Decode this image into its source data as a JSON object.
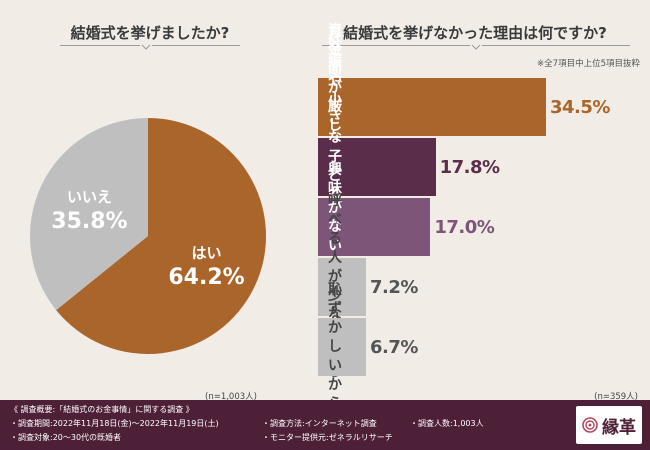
{
  "left": {
    "title": "結婚式を挙げましたか?",
    "n_label": "(n=1,003人)"
  },
  "right": {
    "title": "結婚式を挙げなかった理由は何ですか?",
    "note": "※全7項目中上位5項目抜粋",
    "n_label": "(n=359人)"
  },
  "chart_data": [
    {
      "type": "pie",
      "title": "結婚式を挙げましたか?",
      "categories": [
        "はい",
        "いいえ"
      ],
      "values": [
        64.2,
        35.8
      ],
      "value_labels": [
        "64.2%",
        "35.8%"
      ],
      "colors": [
        "#a9652a",
        "#bfbfbf"
      ],
      "label_colors": [
        "#ffffff",
        "#ffffff"
      ],
      "n": "(n=1,003人)"
    },
    {
      "type": "bar",
      "orientation": "horizontal",
      "title": "結婚式を挙げなかった理由は何ですか?",
      "categories": [
        "資金面が厳しいから",
        "妊娠や\n小さな子どもがいるから",
        "興味がないから",
        "呼べる人が少ないから",
        "恥ずかしいから"
      ],
      "values": [
        34.5,
        17.8,
        17.0,
        7.2,
        6.7
      ],
      "value_labels": [
        "34.5%",
        "17.8%",
        "17.0%",
        "7.2%",
        "6.7%"
      ],
      "colors": [
        "#a9652a",
        "#5a2e4a",
        "#7d5578",
        "#bfbfbf",
        "#bfbfbf"
      ],
      "label_colors": [
        "#ffffff",
        "#ffffff",
        "#ffffff",
        "#444444",
        "#444444"
      ],
      "value_colors": [
        "#a9652a",
        "#5a2e4a",
        "#7d5578",
        "#555555",
        "#555555"
      ],
      "n": "(n=359人)"
    }
  ],
  "footer": {
    "line1": "《 調査概要:「結婚式のお金事情」に関する調査 》",
    "period": "・調査期間:2022年11月18日(金)〜2022年11月19日(土)",
    "method": "・調査方法:インターネット調査",
    "count": "・調査人数:1,003人",
    "target": "・調査対象:20〜30代の既婚者",
    "provider": "・モニター提供元:ゼネラルリサーチ",
    "logo_text": "縁革"
  }
}
